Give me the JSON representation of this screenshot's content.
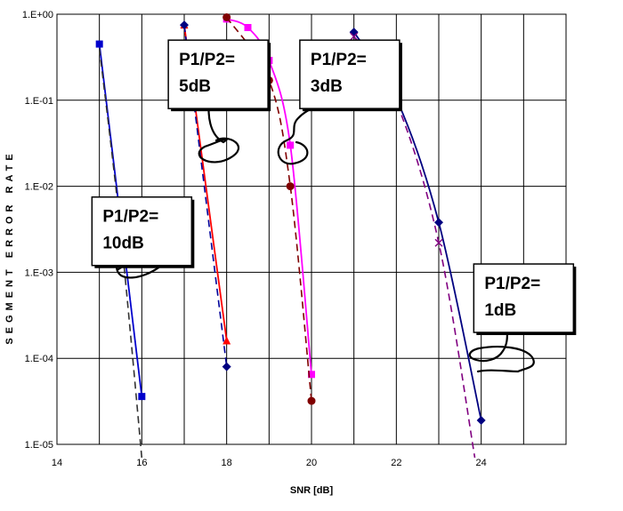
{
  "chart_data": {
    "type": "line",
    "title": "",
    "xlabel": "SNR [dB]",
    "ylabel": "SEGMENT ERROR RATE",
    "xlim": [
      14,
      26
    ],
    "ylim": [
      1e-05,
      1
    ],
    "yscale": "log",
    "grid": true,
    "legend": "none",
    "x_ticks": [
      14,
      16,
      18,
      20,
      22,
      24
    ],
    "x_tick_labels": [
      "14",
      "16",
      "18",
      "20",
      "22",
      "24"
    ],
    "y_ticks": [
      1e-05,
      0.0001,
      0.001,
      0.01,
      0.1,
      1
    ],
    "y_tick_labels": [
      "1.E-05",
      "1.E-04",
      "1.E-03",
      "1.E-02",
      "1.E-01",
      "1.E+00"
    ],
    "series": [
      {
        "color": "#0000cc",
        "dash": "solid",
        "marker": "square",
        "marker_color": "#0000cc",
        "x": [
          15,
          16
        ],
        "y": [
          0.45,
          3.6e-05
        ]
      },
      {
        "color": "#333333",
        "dash": "dashed",
        "marker": "none",
        "marker_color": "#333333",
        "x": [
          15,
          15.5,
          16
        ],
        "y": [
          0.4,
          0.003,
          7e-06
        ]
      },
      {
        "color": "#ff0000",
        "dash": "solid",
        "marker": "triangle",
        "marker_color": "#ff0000",
        "x": [
          17,
          18
        ],
        "y": [
          0.75,
          0.00016
        ]
      },
      {
        "color": "#000099",
        "dash": "dashed",
        "marker": "diamond",
        "marker_color": "#000080",
        "x": [
          17,
          18
        ],
        "y": [
          0.75,
          8e-05
        ]
      },
      {
        "color": "#ff00ff",
        "dash": "solid",
        "marker": "square",
        "marker_color": "#ff00ff",
        "x": [
          18,
          18.5,
          19,
          19.5,
          20
        ],
        "y": [
          0.88,
          0.7,
          0.29,
          0.03,
          6.5e-05
        ]
      },
      {
        "color": "#800000",
        "dash": "dashed",
        "marker": "circle",
        "marker_color": "#800000",
        "x": [
          18,
          19,
          19.5,
          20
        ],
        "y": [
          0.92,
          0.17,
          0.01,
          3.2e-05
        ]
      },
      {
        "color": "#000080",
        "dash": "solid",
        "marker": "diamond",
        "marker_color": "#000080",
        "x": [
          21,
          22,
          23,
          24
        ],
        "y": [
          0.62,
          0.105,
          0.0038,
          1.9e-05
        ]
      },
      {
        "color": "#800080",
        "dash": "dashed",
        "marker": "x",
        "marker_color": "#800080",
        "x": [
          21,
          22,
          23,
          23.85
        ],
        "y": [
          0.55,
          0.095,
          0.0022,
          7e-06
        ]
      }
    ],
    "annotations": [
      {
        "lines": [
          "P1/P2=",
          "10dB"
        ],
        "x": 16,
        "y": 0.003
      },
      {
        "lines": [
          "P1/P2=",
          "5dB"
        ],
        "x": 17.8,
        "y": 0.2
      },
      {
        "lines": [
          "P1/P2=",
          "3dB"
        ],
        "x": 20.9,
        "y": 0.2
      },
      {
        "lines": [
          "P1/P2=",
          "1dB"
        ],
        "x": 25,
        "y": 0.0005
      }
    ]
  }
}
